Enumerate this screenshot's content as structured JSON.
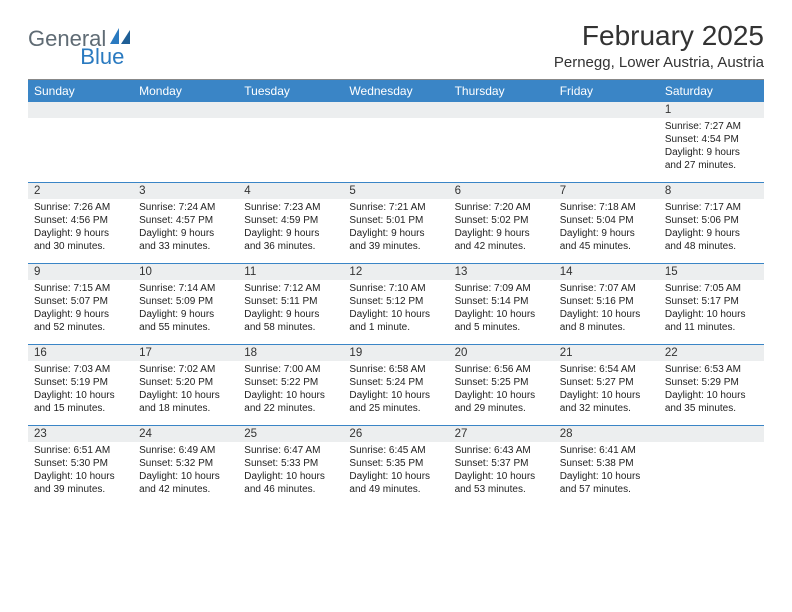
{
  "logo": {
    "text1": "General",
    "text2": "Blue"
  },
  "title": "February 2025",
  "location": "Pernegg, Lower Austria, Austria",
  "colors": {
    "header_bg": "#3a85c6",
    "header_text": "#ffffff",
    "daynum_bg": "#eceeef",
    "week_border": "#3a85c6",
    "logo_gray": "#5f6b74",
    "logo_blue": "#2a7ac0"
  },
  "day_names": [
    "Sunday",
    "Monday",
    "Tuesday",
    "Wednesday",
    "Thursday",
    "Friday",
    "Saturday"
  ],
  "weeks": [
    {
      "nums": [
        "",
        "",
        "",
        "",
        "",
        "",
        "1"
      ],
      "cells": [
        null,
        null,
        null,
        null,
        null,
        null,
        {
          "sunrise": "Sunrise: 7:27 AM",
          "sunset": "Sunset: 4:54 PM",
          "daylight": "Daylight: 9 hours and 27 minutes."
        }
      ]
    },
    {
      "nums": [
        "2",
        "3",
        "4",
        "5",
        "6",
        "7",
        "8"
      ],
      "cells": [
        {
          "sunrise": "Sunrise: 7:26 AM",
          "sunset": "Sunset: 4:56 PM",
          "daylight": "Daylight: 9 hours and 30 minutes."
        },
        {
          "sunrise": "Sunrise: 7:24 AM",
          "sunset": "Sunset: 4:57 PM",
          "daylight": "Daylight: 9 hours and 33 minutes."
        },
        {
          "sunrise": "Sunrise: 7:23 AM",
          "sunset": "Sunset: 4:59 PM",
          "daylight": "Daylight: 9 hours and 36 minutes."
        },
        {
          "sunrise": "Sunrise: 7:21 AM",
          "sunset": "Sunset: 5:01 PM",
          "daylight": "Daylight: 9 hours and 39 minutes."
        },
        {
          "sunrise": "Sunrise: 7:20 AM",
          "sunset": "Sunset: 5:02 PM",
          "daylight": "Daylight: 9 hours and 42 minutes."
        },
        {
          "sunrise": "Sunrise: 7:18 AM",
          "sunset": "Sunset: 5:04 PM",
          "daylight": "Daylight: 9 hours and 45 minutes."
        },
        {
          "sunrise": "Sunrise: 7:17 AM",
          "sunset": "Sunset: 5:06 PM",
          "daylight": "Daylight: 9 hours and 48 minutes."
        }
      ]
    },
    {
      "nums": [
        "9",
        "10",
        "11",
        "12",
        "13",
        "14",
        "15"
      ],
      "cells": [
        {
          "sunrise": "Sunrise: 7:15 AM",
          "sunset": "Sunset: 5:07 PM",
          "daylight": "Daylight: 9 hours and 52 minutes."
        },
        {
          "sunrise": "Sunrise: 7:14 AM",
          "sunset": "Sunset: 5:09 PM",
          "daylight": "Daylight: 9 hours and 55 minutes."
        },
        {
          "sunrise": "Sunrise: 7:12 AM",
          "sunset": "Sunset: 5:11 PM",
          "daylight": "Daylight: 9 hours and 58 minutes."
        },
        {
          "sunrise": "Sunrise: 7:10 AM",
          "sunset": "Sunset: 5:12 PM",
          "daylight": "Daylight: 10 hours and 1 minute."
        },
        {
          "sunrise": "Sunrise: 7:09 AM",
          "sunset": "Sunset: 5:14 PM",
          "daylight": "Daylight: 10 hours and 5 minutes."
        },
        {
          "sunrise": "Sunrise: 7:07 AM",
          "sunset": "Sunset: 5:16 PM",
          "daylight": "Daylight: 10 hours and 8 minutes."
        },
        {
          "sunrise": "Sunrise: 7:05 AM",
          "sunset": "Sunset: 5:17 PM",
          "daylight": "Daylight: 10 hours and 11 minutes."
        }
      ]
    },
    {
      "nums": [
        "16",
        "17",
        "18",
        "19",
        "20",
        "21",
        "22"
      ],
      "cells": [
        {
          "sunrise": "Sunrise: 7:03 AM",
          "sunset": "Sunset: 5:19 PM",
          "daylight": "Daylight: 10 hours and 15 minutes."
        },
        {
          "sunrise": "Sunrise: 7:02 AM",
          "sunset": "Sunset: 5:20 PM",
          "daylight": "Daylight: 10 hours and 18 minutes."
        },
        {
          "sunrise": "Sunrise: 7:00 AM",
          "sunset": "Sunset: 5:22 PM",
          "daylight": "Daylight: 10 hours and 22 minutes."
        },
        {
          "sunrise": "Sunrise: 6:58 AM",
          "sunset": "Sunset: 5:24 PM",
          "daylight": "Daylight: 10 hours and 25 minutes."
        },
        {
          "sunrise": "Sunrise: 6:56 AM",
          "sunset": "Sunset: 5:25 PM",
          "daylight": "Daylight: 10 hours and 29 minutes."
        },
        {
          "sunrise": "Sunrise: 6:54 AM",
          "sunset": "Sunset: 5:27 PM",
          "daylight": "Daylight: 10 hours and 32 minutes."
        },
        {
          "sunrise": "Sunrise: 6:53 AM",
          "sunset": "Sunset: 5:29 PM",
          "daylight": "Daylight: 10 hours and 35 minutes."
        }
      ]
    },
    {
      "nums": [
        "23",
        "24",
        "25",
        "26",
        "27",
        "28",
        ""
      ],
      "cells": [
        {
          "sunrise": "Sunrise: 6:51 AM",
          "sunset": "Sunset: 5:30 PM",
          "daylight": "Daylight: 10 hours and 39 minutes."
        },
        {
          "sunrise": "Sunrise: 6:49 AM",
          "sunset": "Sunset: 5:32 PM",
          "daylight": "Daylight: 10 hours and 42 minutes."
        },
        {
          "sunrise": "Sunrise: 6:47 AM",
          "sunset": "Sunset: 5:33 PM",
          "daylight": "Daylight: 10 hours and 46 minutes."
        },
        {
          "sunrise": "Sunrise: 6:45 AM",
          "sunset": "Sunset: 5:35 PM",
          "daylight": "Daylight: 10 hours and 49 minutes."
        },
        {
          "sunrise": "Sunrise: 6:43 AM",
          "sunset": "Sunset: 5:37 PM",
          "daylight": "Daylight: 10 hours and 53 minutes."
        },
        {
          "sunrise": "Sunrise: 6:41 AM",
          "sunset": "Sunset: 5:38 PM",
          "daylight": "Daylight: 10 hours and 57 minutes."
        },
        null
      ]
    }
  ]
}
